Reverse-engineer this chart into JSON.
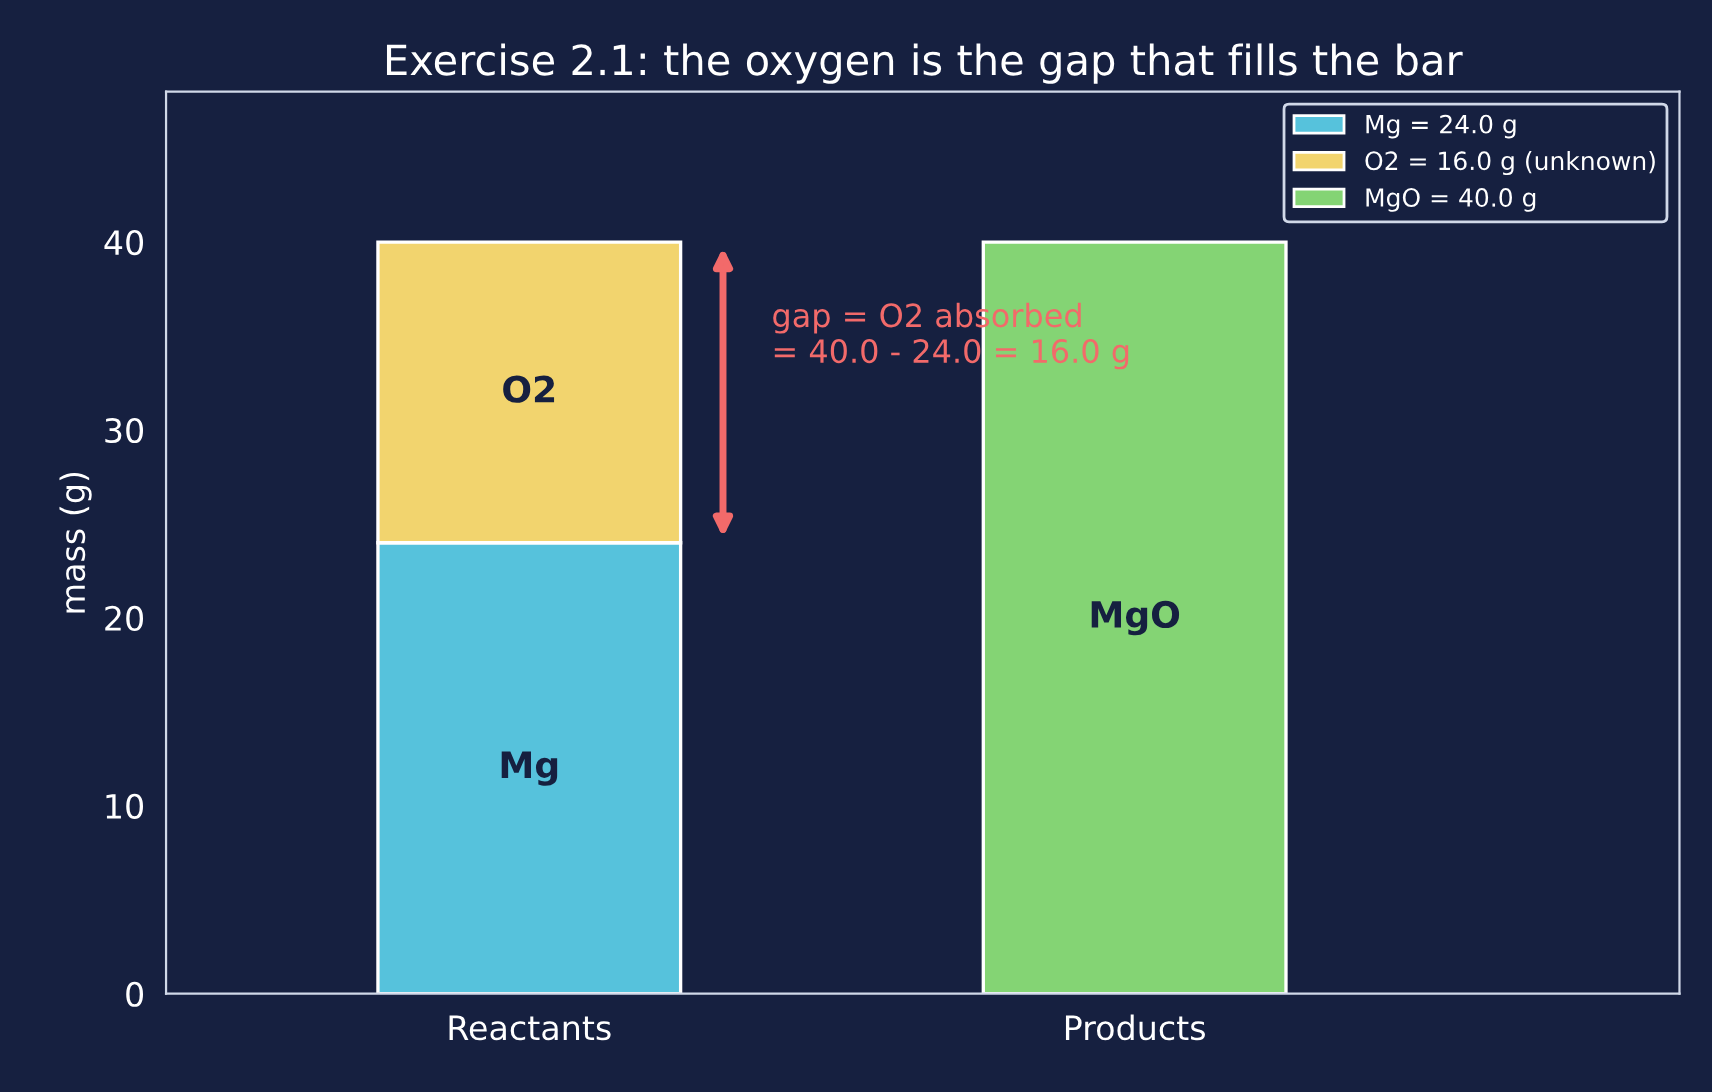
{
  "chart_data": {
    "type": "bar",
    "title": "Exercise 2.1: the oxygen is the gap that fills the bar",
    "ylabel": "mass (g)",
    "categories": [
      "Reactants",
      "Products"
    ],
    "stacked": true,
    "series": [
      {
        "name": "Mg = 24.0 g",
        "color": "#56c2dc",
        "values": [
          24.0,
          null
        ]
      },
      {
        "name": "O2 = 16.0 g (unknown)",
        "color": "#f2d46e",
        "values": [
          16.0,
          null
        ]
      },
      {
        "name": "MgO = 40.0 g",
        "color": "#84d474",
        "values": [
          null,
          40.0
        ]
      }
    ],
    "ylim": [
      0,
      48
    ],
    "yticks": [
      0,
      10,
      20,
      30,
      40
    ],
    "grid": false,
    "legend": "top right",
    "annotations": [
      "Mg",
      "O2",
      "MgO",
      "gap = O2 absorbed\n= 40.0 - 24.0 = 16.0 g"
    ]
  }
}
